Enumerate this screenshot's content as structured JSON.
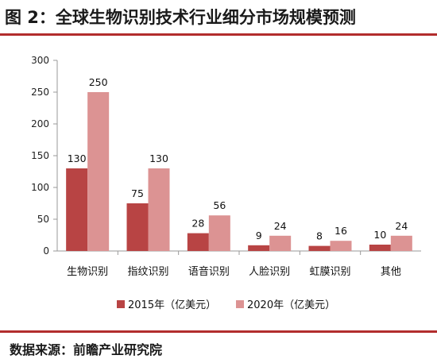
{
  "header": {
    "title": "图 2：全球生物识别技术行业细分市场规模预测"
  },
  "footer": {
    "source": "数据来源：前瞻产业研究院"
  },
  "colors": {
    "accent": "#b22d2d",
    "series_2015": "#b84444",
    "series_2020": "#dc9393"
  },
  "chart_data": {
    "type": "bar",
    "title": "",
    "xlabel": "",
    "ylabel": "",
    "ylim": [
      0,
      300
    ],
    "yticks": [
      0,
      50,
      100,
      150,
      200,
      250,
      300
    ],
    "categories": [
      "生物识别",
      "指纹识别",
      "语音识别",
      "人脸识别",
      "虹膜识别",
      "其他"
    ],
    "series": [
      {
        "name": "2015年（亿美元）",
        "values": [
          130,
          75,
          28,
          9,
          8,
          10
        ]
      },
      {
        "name": "2020年（亿美元）",
        "values": [
          250,
          130,
          56,
          24,
          16,
          24
        ]
      }
    ],
    "grid": false,
    "legend_position": "bottom"
  }
}
